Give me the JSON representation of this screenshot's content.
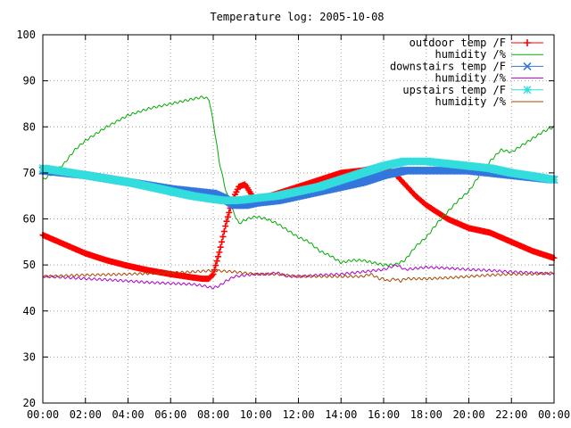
{
  "chart_data": {
    "type": "line",
    "title": "Temperature log: 2005-10-08",
    "xlabel": "",
    "ylabel": "",
    "xlim": [
      "00:00",
      "24:00"
    ],
    "ylim": [
      20,
      100
    ],
    "grid": true,
    "legend_position": "top-right",
    "x_ticks": [
      "00:00",
      "02:00",
      "04:00",
      "06:00",
      "08:00",
      "10:00",
      "12:00",
      "14:00",
      "16:00",
      "18:00",
      "20:00",
      "22:00",
      "00:00"
    ],
    "y_ticks": [
      20,
      30,
      40,
      50,
      60,
      70,
      80,
      90,
      100
    ],
    "series": [
      {
        "name": "outdoor temp /F",
        "color": "#ff0000",
        "marker": "plus",
        "x_hours": [
          0,
          1,
          2,
          3,
          4,
          5,
          6,
          7,
          7.5,
          7.8,
          8,
          8.3,
          8.6,
          8.9,
          9.2,
          9.5,
          9.7,
          9.9,
          10.3,
          11,
          12,
          13,
          14,
          15,
          15.5,
          16,
          16.5,
          17,
          17.5,
          18,
          19,
          20,
          21,
          22,
          23,
          24
        ],
        "values": [
          56.5,
          54.5,
          52.5,
          51,
          49.8,
          48.8,
          48,
          47.3,
          47,
          47,
          48,
          53,
          59,
          64,
          67,
          67.5,
          66,
          64.5,
          64.5,
          65.5,
          67,
          68.5,
          70,
          70.5,
          71,
          71,
          70,
          67.5,
          65,
          63,
          60,
          58,
          57,
          55,
          53,
          51.5
        ]
      },
      {
        "name": "humidity /%",
        "color": "#00aa00",
        "marker": "none",
        "x_hours": [
          0,
          0.5,
          1,
          1.5,
          2,
          3,
          4,
          5,
          6,
          7,
          7.5,
          7.8,
          8,
          8.3,
          8.6,
          8.9,
          9.2,
          9.6,
          10,
          10.5,
          11,
          11.5,
          12,
          12.5,
          13,
          13.5,
          14,
          14.5,
          15,
          15.5,
          16,
          16.5,
          17,
          17.5,
          18,
          18.5,
          19,
          19.5,
          20,
          20.5,
          21,
          21.5,
          22,
          22.5,
          23,
          23.5,
          24
        ],
        "values": [
          68.5,
          70,
          72,
          75,
          77,
          80,
          82.5,
          84,
          85,
          86,
          86.5,
          86,
          81,
          72,
          66,
          62,
          59,
          60,
          60.5,
          60,
          59,
          57.5,
          56,
          55,
          53,
          52,
          50.5,
          51,
          51,
          50.5,
          50,
          50,
          51,
          54,
          56,
          59,
          61.5,
          64,
          66,
          69.5,
          72.5,
          75,
          74.5,
          76,
          77.5,
          79,
          80
        ]
      },
      {
        "name": "downstairs temp /F",
        "color": "#3377dd",
        "marker": "cross",
        "x_hours": [
          0,
          2,
          4,
          6,
          7,
          8,
          8.5,
          9,
          9.5,
          10,
          11,
          12,
          13,
          14,
          15,
          16,
          17,
          18,
          19,
          20,
          21,
          22,
          23,
          24
        ],
        "values": [
          70.5,
          69.5,
          68,
          66.5,
          66,
          65.5,
          64.5,
          63,
          63,
          63.5,
          64,
          65,
          66,
          67,
          68,
          69.5,
          70.5,
          70.5,
          70.5,
          70.5,
          70,
          69.5,
          69,
          68.5
        ]
      },
      {
        "name": "humidity /%",
        "color": "#aa00cc",
        "marker": "none",
        "x_hours": [
          0,
          1,
          2,
          3,
          4,
          5,
          6,
          7,
          7.5,
          8,
          8.3,
          8.6,
          9,
          10,
          10.5,
          11,
          11.5,
          12,
          13,
          14,
          15,
          16,
          16.3,
          16.6,
          17,
          18,
          19,
          20,
          21,
          22,
          23,
          24
        ],
        "values": [
          47.5,
          47.3,
          47,
          46.8,
          46.5,
          46.2,
          46,
          45.8,
          45.5,
          45,
          45.5,
          46.5,
          47.5,
          48,
          48,
          48.3,
          47.5,
          47.5,
          47.8,
          48,
          48.5,
          49,
          49.5,
          50,
          49,
          49.5,
          49.3,
          49,
          48.8,
          48.5,
          48.3,
          48
        ]
      },
      {
        "name": "upstairs temp /F",
        "color": "#33dddd",
        "marker": "star",
        "x_hours": [
          0,
          2,
          4,
          6,
          7,
          8,
          8.5,
          9,
          9.5,
          10,
          11,
          12,
          13,
          14,
          15,
          16,
          17,
          18,
          19,
          20,
          21,
          22,
          23,
          24
        ],
        "values": [
          71,
          69.5,
          68,
          66,
          65,
          64.3,
          64,
          64,
          64.2,
          64.5,
          65,
          66,
          67,
          68.5,
          70,
          71.5,
          72.5,
          72.5,
          72,
          71.5,
          71,
          70,
          69.3,
          68.5
        ]
      },
      {
        "name": "humidity /%",
        "color": "#aa4400",
        "marker": "none",
        "x_hours": [
          0,
          2,
          4,
          6,
          7,
          8,
          9,
          10,
          11,
          12,
          13,
          14,
          15,
          15.4,
          15.8,
          16,
          16.2,
          16.5,
          16.8,
          17,
          18,
          19,
          20,
          21,
          22,
          23,
          24
        ],
        "values": [
          47.5,
          47.8,
          48,
          48.3,
          48.5,
          48.8,
          48.5,
          48,
          48,
          47.5,
          47.5,
          47.5,
          47.5,
          48,
          47,
          47,
          46.5,
          47,
          46.5,
          47,
          47,
          47.2,
          47.5,
          47.8,
          48,
          48,
          48.3
        ]
      }
    ]
  }
}
